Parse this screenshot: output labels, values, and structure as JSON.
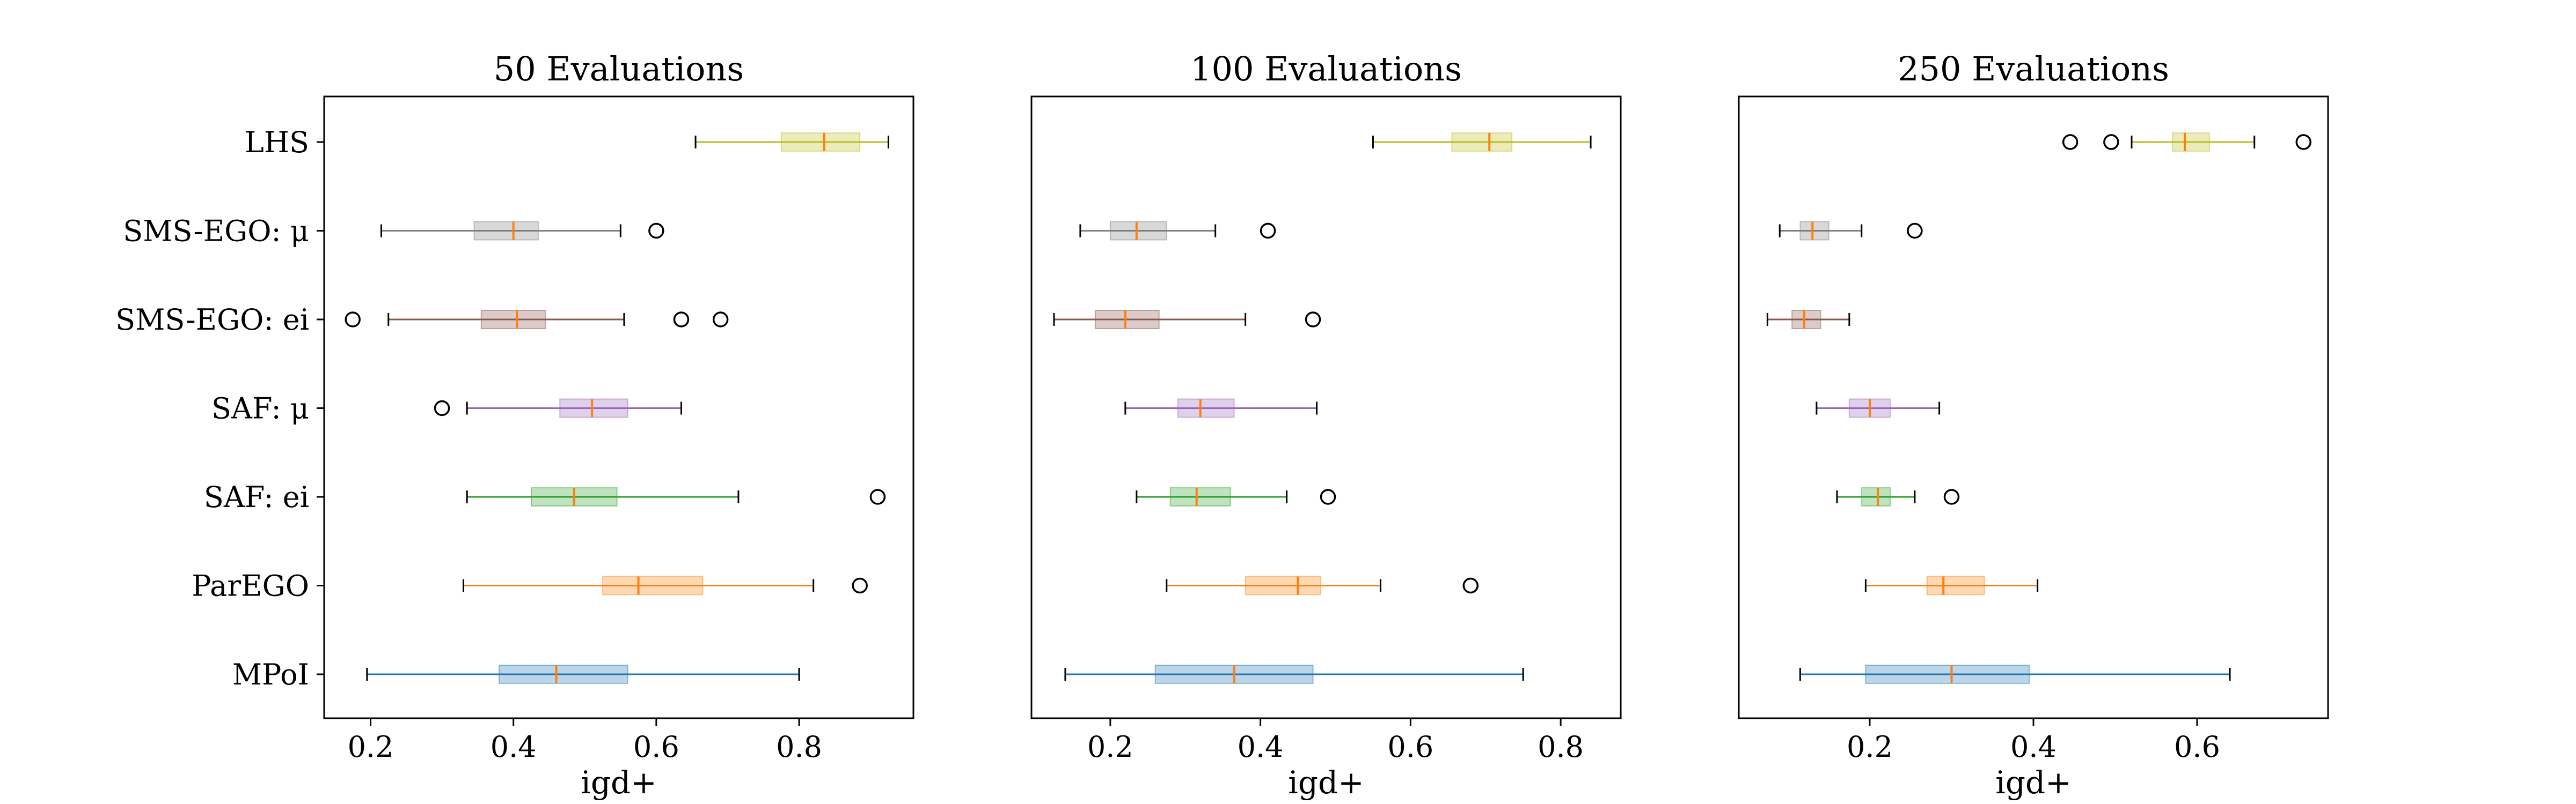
{
  "chart_data": [
    {
      "type": "boxplot",
      "orientation": "horizontal",
      "title": "50 Evaluations",
      "xlabel": "igd+",
      "ylabel": "",
      "xlim": [
        0.135,
        0.96
      ],
      "xticks": [
        0.2,
        0.4,
        0.6,
        0.8
      ],
      "xtick_labels": [
        "0.2",
        "0.4",
        "0.6",
        "0.8"
      ],
      "grid": false,
      "categories": [
        "LHS",
        "SMS-EGO: μ",
        "SMS-EGO: ei",
        "SAF: μ",
        "SAF: ei",
        "ParEGO",
        "MPoI"
      ],
      "series": [
        {
          "category": "LHS",
          "whisker_low": 0.655,
          "q1": 0.775,
          "median": 0.835,
          "q3": 0.885,
          "whisker_high": 0.925,
          "outliers": []
        },
        {
          "category": "SMS-EGO: μ",
          "whisker_low": 0.215,
          "q1": 0.345,
          "median": 0.4,
          "q3": 0.435,
          "whisker_high": 0.55,
          "outliers": [
            0.6
          ]
        },
        {
          "category": "SMS-EGO: ei",
          "whisker_low": 0.225,
          "q1": 0.355,
          "median": 0.405,
          "q3": 0.445,
          "whisker_high": 0.555,
          "outliers": [
            0.175,
            0.635,
            0.69
          ]
        },
        {
          "category": "SAF: μ",
          "whisker_low": 0.335,
          "q1": 0.465,
          "median": 0.51,
          "q3": 0.56,
          "whisker_high": 0.635,
          "outliers": [
            0.3
          ]
        },
        {
          "category": "SAF: ei",
          "whisker_low": 0.335,
          "q1": 0.425,
          "median": 0.485,
          "q3": 0.545,
          "whisker_high": 0.715,
          "outliers": [
            0.91
          ]
        },
        {
          "category": "ParEGO",
          "whisker_low": 0.33,
          "q1": 0.525,
          "median": 0.575,
          "q3": 0.665,
          "whisker_high": 0.82,
          "outliers": [
            0.885
          ]
        },
        {
          "category": "MPoI",
          "whisker_low": 0.195,
          "q1": 0.38,
          "median": 0.46,
          "q3": 0.56,
          "whisker_high": 0.8,
          "outliers": []
        }
      ]
    },
    {
      "type": "boxplot",
      "orientation": "horizontal",
      "title": "100 Evaluations",
      "xlabel": "igd+",
      "ylabel": "",
      "xlim": [
        0.095,
        0.88
      ],
      "xticks": [
        0.2,
        0.4,
        0.6,
        0.8
      ],
      "xtick_labels": [
        "0.2",
        "0.4",
        "0.6",
        "0.8"
      ],
      "grid": false,
      "categories": [
        "LHS",
        "SMS-EGO: μ",
        "SMS-EGO: ei",
        "SAF: μ",
        "SAF: ei",
        "ParEGO",
        "MPoI"
      ],
      "series": [
        {
          "category": "LHS",
          "whisker_low": 0.55,
          "q1": 0.655,
          "median": 0.705,
          "q3": 0.735,
          "whisker_high": 0.84,
          "outliers": []
        },
        {
          "category": "SMS-EGO: μ",
          "whisker_low": 0.16,
          "q1": 0.2,
          "median": 0.235,
          "q3": 0.275,
          "whisker_high": 0.34,
          "outliers": [
            0.41
          ]
        },
        {
          "category": "SMS-EGO: ei",
          "whisker_low": 0.125,
          "q1": 0.18,
          "median": 0.22,
          "q3": 0.265,
          "whisker_high": 0.38,
          "outliers": [
            0.47
          ]
        },
        {
          "category": "SAF: μ",
          "whisker_low": 0.22,
          "q1": 0.29,
          "median": 0.32,
          "q3": 0.365,
          "whisker_high": 0.475,
          "outliers": []
        },
        {
          "category": "SAF: ei",
          "whisker_low": 0.235,
          "q1": 0.28,
          "median": 0.315,
          "q3": 0.36,
          "whisker_high": 0.435,
          "outliers": [
            0.49
          ]
        },
        {
          "category": "ParEGO",
          "whisker_low": 0.275,
          "q1": 0.38,
          "median": 0.45,
          "q3": 0.48,
          "whisker_high": 0.56,
          "outliers": [
            0.68
          ]
        },
        {
          "category": "MPoI",
          "whisker_low": 0.14,
          "q1": 0.26,
          "median": 0.365,
          "q3": 0.47,
          "whisker_high": 0.75,
          "outliers": []
        }
      ]
    },
    {
      "type": "boxplot",
      "orientation": "horizontal",
      "title": "250 Evaluations",
      "xlabel": "igd+",
      "ylabel": "",
      "xlim": [
        0.04,
        0.76
      ],
      "xticks": [
        0.2,
        0.4,
        0.6
      ],
      "xtick_labels": [
        "0.2",
        "0.4",
        "0.6"
      ],
      "grid": false,
      "categories": [
        "LHS",
        "SMS-EGO: μ",
        "SMS-EGO: ei",
        "SAF: μ",
        "SAF: ei",
        "ParEGO",
        "MPoI"
      ],
      "series": [
        {
          "category": "LHS",
          "whisker_low": 0.52,
          "q1": 0.57,
          "median": 0.585,
          "q3": 0.615,
          "whisker_high": 0.67,
          "outliers": [
            0.445,
            0.495,
            0.73
          ]
        },
        {
          "category": "SMS-EGO: μ",
          "whisker_low": 0.09,
          "q1": 0.115,
          "median": 0.13,
          "q3": 0.15,
          "whisker_high": 0.19,
          "outliers": [
            0.255
          ]
        },
        {
          "category": "SMS-EGO: ei",
          "whisker_low": 0.075,
          "q1": 0.105,
          "median": 0.12,
          "q3": 0.14,
          "whisker_high": 0.175,
          "outliers": []
        },
        {
          "category": "SAF: μ",
          "whisker_low": 0.135,
          "q1": 0.175,
          "median": 0.2,
          "q3": 0.225,
          "whisker_high": 0.285,
          "outliers": []
        },
        {
          "category": "SAF: ei",
          "whisker_low": 0.16,
          "q1": 0.19,
          "median": 0.21,
          "q3": 0.225,
          "whisker_high": 0.255,
          "outliers": [
            0.3
          ]
        },
        {
          "category": "ParEGO",
          "whisker_low": 0.195,
          "q1": 0.27,
          "median": 0.29,
          "q3": 0.34,
          "whisker_high": 0.405,
          "outliers": []
        },
        {
          "category": "MPoI",
          "whisker_low": 0.115,
          "q1": 0.195,
          "median": 0.3,
          "q3": 0.395,
          "whisker_high": 0.64,
          "outliers": []
        }
      ]
    }
  ],
  "colors": {
    "LHS": "#bcbd22",
    "SMS-EGO: μ": "#7f7f7f",
    "SMS-EGO: ei": "#8c564b",
    "SAF: μ": "#9467bd",
    "SAF: ei": "#2ca02c",
    "ParEGO": "#ff7f0e",
    "MPoI": "#1f77b4",
    "median": "#ff7f0e"
  }
}
